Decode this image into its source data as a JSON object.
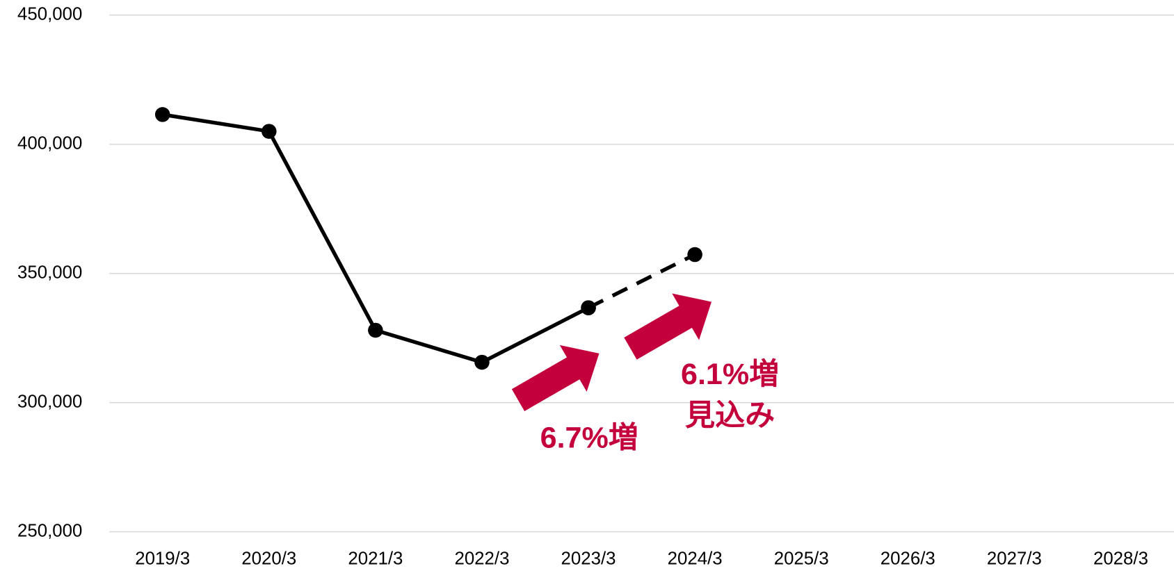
{
  "chart_data": {
    "type": "line",
    "categories": [
      "2019/3",
      "2020/3",
      "2021/3",
      "2022/3",
      "2023/3",
      "2024/3",
      "2025/3",
      "2026/3",
      "2027/3",
      "2028/3"
    ],
    "series": [
      {
        "color": "#000000",
        "values": [
          411500,
          405000,
          328000,
          315600,
          336700,
          null,
          null,
          null,
          null,
          null
        ]
      },
      {
        "color": "#000000",
        "dashed": true,
        "values": [
          null,
          null,
          null,
          null,
          336700,
          357300,
          null,
          null,
          null,
          null
        ]
      }
    ],
    "ylim": [
      250000,
      450000
    ],
    "yticks": [
      {
        "value": 250000,
        "label": "250,000"
      },
      {
        "value": 300000,
        "label": "300,000"
      },
      {
        "value": 350000,
        "label": "350,000"
      },
      {
        "value": 400000,
        "label": "400,000"
      },
      {
        "value": 450000,
        "label": "450,000"
      }
    ],
    "grid": true,
    "annotations": [
      "6.7%増",
      "6.1%増",
      "見込み"
    ]
  }
}
